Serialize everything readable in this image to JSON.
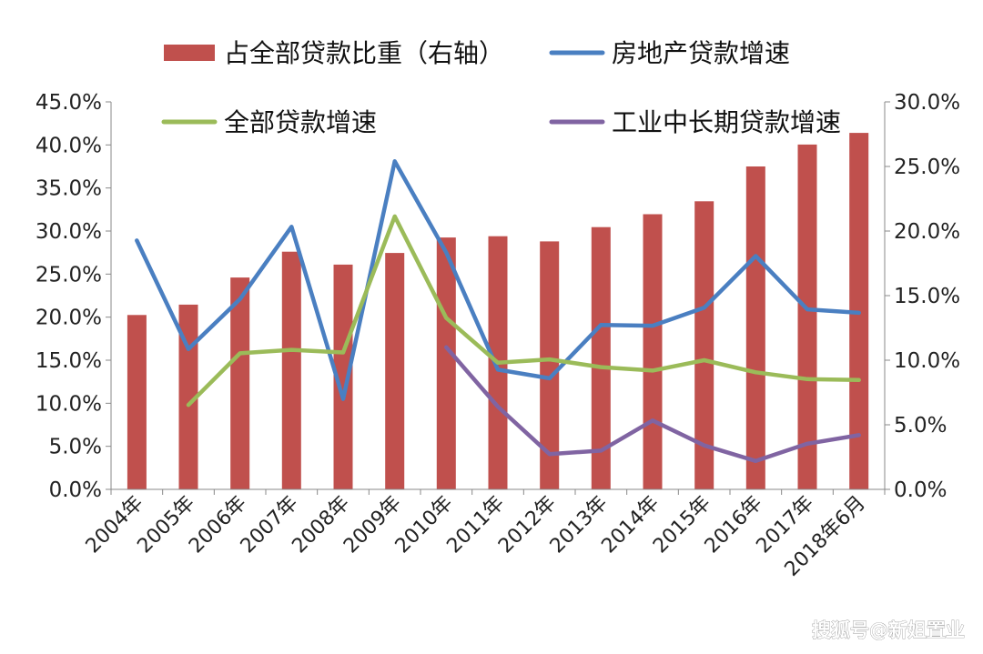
{
  "chart_data": {
    "type": "bar",
    "categories": [
      "2004年",
      "2005年",
      "2006年",
      "2007年",
      "2008年",
      "2009年",
      "2010年",
      "2011年",
      "2012年",
      "2013年",
      "2014年",
      "2015年",
      "2016年",
      "2017年",
      "2018年6月"
    ],
    "left_axis": {
      "min": 0,
      "max": 45,
      "step": 5,
      "ticks": [
        "0.0%",
        "5.0%",
        "10.0%",
        "15.0%",
        "20.0%",
        "25.0%",
        "30.0%",
        "35.0%",
        "40.0%",
        "45.0%"
      ]
    },
    "right_axis": {
      "min": 0,
      "max": 30,
      "step": 5,
      "ticks": [
        "0.0%",
        "5.0%",
        "10.0%",
        "15.0%",
        "20.0%",
        "25.0%",
        "30.0%"
      ]
    },
    "series": [
      {
        "name": "占全部贷款比重（右轴）",
        "type": "bar",
        "axis": "right",
        "color": "#c0504d",
        "values": [
          13.5,
          14.3,
          16.4,
          18.4,
          17.4,
          18.3,
          19.5,
          19.6,
          19.2,
          20.3,
          21.3,
          22.3,
          25.0,
          26.7,
          27.6
        ]
      },
      {
        "name": "房地产贷款增速",
        "type": "line",
        "axis": "left",
        "color": "#4a7fc1",
        "values": [
          28.9,
          16.3,
          22.1,
          30.5,
          10.5,
          38.1,
          27.5,
          13.9,
          12.9,
          19.1,
          19.0,
          21.1,
          27.1,
          20.9,
          20.5
        ]
      },
      {
        "name": "全部贷款增速",
        "type": "line",
        "axis": "left",
        "color": "#9bbb59",
        "values": [
          null,
          9.8,
          15.8,
          16.2,
          15.9,
          31.7,
          19.9,
          14.7,
          15.1,
          14.2,
          13.8,
          15.0,
          13.6,
          12.8,
          12.7
        ]
      },
      {
        "name": "工业中长期贷款增速",
        "type": "line",
        "axis": "left",
        "color": "#8064a2",
        "values": [
          null,
          null,
          null,
          null,
          null,
          null,
          16.5,
          9.6,
          4.1,
          4.5,
          8.0,
          5.1,
          3.3,
          5.3,
          6.3
        ]
      }
    ],
    "legend": [
      {
        "label": "占全部贷款比重（右轴）",
        "kind": "bar",
        "color": "#c0504d"
      },
      {
        "label": "房地产贷款增速",
        "kind": "line",
        "color": "#4a7fc1"
      },
      {
        "label": "全部贷款增速",
        "kind": "line",
        "color": "#9bbb59"
      },
      {
        "label": "工业中长期贷款增速",
        "kind": "line",
        "color": "#8064a2"
      }
    ],
    "legend_placement": "top",
    "grid": false
  },
  "watermark": "搜狐号@新姐置业"
}
